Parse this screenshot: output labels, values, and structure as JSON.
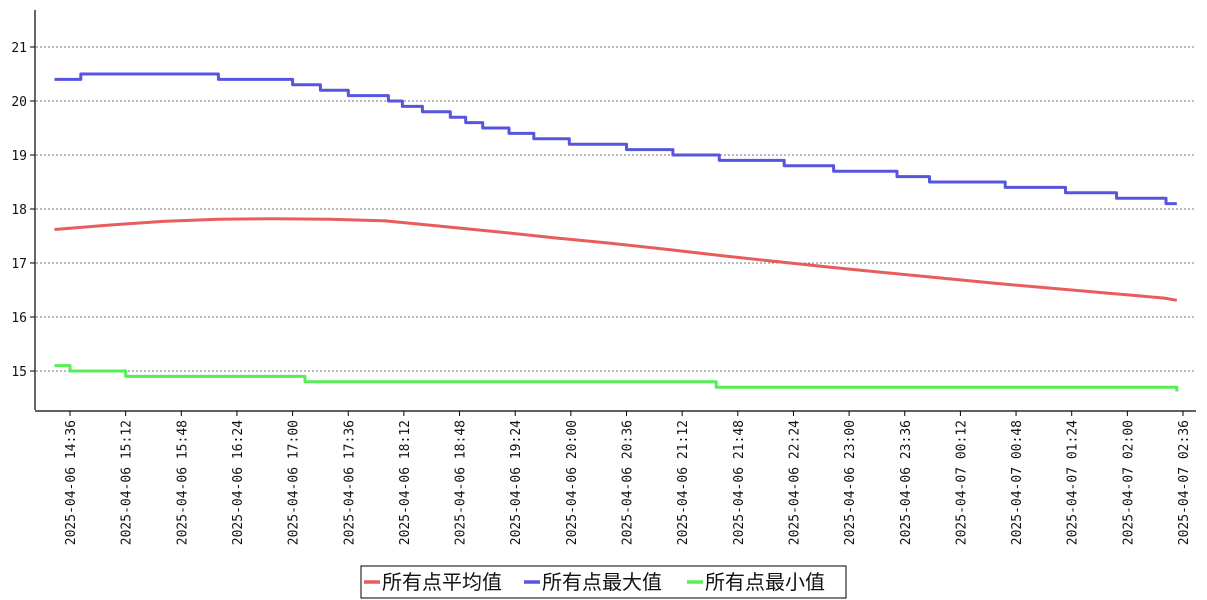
{
  "chart_data": {
    "type": "line",
    "title": "",
    "xlabel": "",
    "ylabel": "",
    "ylim": [
      14.3,
      21.7
    ],
    "yticks": [
      15,
      16,
      17,
      18,
      19,
      20,
      21
    ],
    "xticks": [
      "2025-04-06 14:36",
      "2025-04-06 15:12",
      "2025-04-06 15:48",
      "2025-04-06 16:24",
      "2025-04-06 17:00",
      "2025-04-06 17:36",
      "2025-04-06 18:12",
      "2025-04-06 18:48",
      "2025-04-06 19:24",
      "2025-04-06 20:00",
      "2025-04-06 20:36",
      "2025-04-06 21:12",
      "2025-04-06 21:48",
      "2025-04-06 22:24",
      "2025-04-06 23:00",
      "2025-04-06 23:36",
      "2025-04-07 00:12",
      "2025-04-07 00:48",
      "2025-04-07 01:24",
      "2025-04-07 02:00",
      "2025-04-07 02:36"
    ],
    "grid": "horizontal-dotted",
    "legend_position": "bottom-center",
    "series": [
      {
        "name": "所有点平均值",
        "color": "#e85c5c",
        "points": [
          [
            "2025-04-06 14:26",
            17.62
          ],
          [
            "2025-04-06 15:00",
            17.7
          ],
          [
            "2025-04-06 15:36",
            17.77
          ],
          [
            "2025-04-06 16:12",
            17.81
          ],
          [
            "2025-04-06 16:48",
            17.82
          ],
          [
            "2025-04-06 17:24",
            17.81
          ],
          [
            "2025-04-06 18:00",
            17.78
          ],
          [
            "2025-04-06 18:36",
            17.68
          ],
          [
            "2025-04-06 19:12",
            17.58
          ],
          [
            "2025-04-06 19:48",
            17.47
          ],
          [
            "2025-04-06 20:24",
            17.37
          ],
          [
            "2025-04-06 21:00",
            17.26
          ],
          [
            "2025-04-06 21:36",
            17.14
          ],
          [
            "2025-04-06 22:12",
            17.03
          ],
          [
            "2025-04-06 22:48",
            16.92
          ],
          [
            "2025-04-06 23:24",
            16.82
          ],
          [
            "2025-04-07 00:00",
            16.72
          ],
          [
            "2025-04-07 00:36",
            16.62
          ],
          [
            "2025-04-07 01:12",
            16.53
          ],
          [
            "2025-04-07 01:48",
            16.44
          ],
          [
            "2025-04-07 02:24",
            16.35
          ],
          [
            "2025-04-07 02:32",
            16.31
          ]
        ]
      },
      {
        "name": "所有点最大值",
        "color": "#5555dd",
        "points": [
          [
            "2025-04-06 14:26",
            20.4
          ],
          [
            "2025-04-06 14:43",
            20.4
          ],
          [
            "2025-04-06 14:43",
            20.5
          ],
          [
            "2025-04-06 16:12",
            20.5
          ],
          [
            "2025-04-06 16:12",
            20.4
          ],
          [
            "2025-04-06 17:00",
            20.4
          ],
          [
            "2025-04-06 17:00",
            20.3
          ],
          [
            "2025-04-06 17:18",
            20.3
          ],
          [
            "2025-04-06 17:18",
            20.2
          ],
          [
            "2025-04-06 17:36",
            20.2
          ],
          [
            "2025-04-06 17:36",
            20.1
          ],
          [
            "2025-04-06 18:02",
            20.1
          ],
          [
            "2025-04-06 18:02",
            20.0
          ],
          [
            "2025-04-06 18:11",
            20.0
          ],
          [
            "2025-04-06 18:11",
            19.9
          ],
          [
            "2025-04-06 18:24",
            19.9
          ],
          [
            "2025-04-06 18:24",
            19.8
          ],
          [
            "2025-04-06 18:42",
            19.8
          ],
          [
            "2025-04-06 18:42",
            19.7
          ],
          [
            "2025-04-06 18:52",
            19.7
          ],
          [
            "2025-04-06 18:52",
            19.6
          ],
          [
            "2025-04-06 19:03",
            19.6
          ],
          [
            "2025-04-06 19:03",
            19.5
          ],
          [
            "2025-04-06 19:20",
            19.5
          ],
          [
            "2025-04-06 19:20",
            19.4
          ],
          [
            "2025-04-06 19:36",
            19.4
          ],
          [
            "2025-04-06 19:36",
            19.3
          ],
          [
            "2025-04-06 19:59",
            19.3
          ],
          [
            "2025-04-06 19:59",
            19.2
          ],
          [
            "2025-04-06 20:36",
            19.2
          ],
          [
            "2025-04-06 20:36",
            19.1
          ],
          [
            "2025-04-06 21:06",
            19.1
          ],
          [
            "2025-04-06 21:06",
            19.0
          ],
          [
            "2025-04-06 21:36",
            19.0
          ],
          [
            "2025-04-06 21:36",
            18.9
          ],
          [
            "2025-04-06 22:18",
            18.9
          ],
          [
            "2025-04-06 22:18",
            18.8
          ],
          [
            "2025-04-06 22:50",
            18.8
          ],
          [
            "2025-04-06 22:50",
            18.7
          ],
          [
            "2025-04-06 23:31",
            18.7
          ],
          [
            "2025-04-06 23:31",
            18.6
          ],
          [
            "2025-04-06 23:52",
            18.6
          ],
          [
            "2025-04-06 23:52",
            18.5
          ],
          [
            "2025-04-07 00:41",
            18.5
          ],
          [
            "2025-04-07 00:41",
            18.4
          ],
          [
            "2025-04-07 01:20",
            18.4
          ],
          [
            "2025-04-07 01:20",
            18.3
          ],
          [
            "2025-04-07 01:53",
            18.3
          ],
          [
            "2025-04-07 01:53",
            18.2
          ],
          [
            "2025-04-07 02:25",
            18.2
          ],
          [
            "2025-04-07 02:25",
            18.1
          ],
          [
            "2025-04-07 02:32",
            18.1
          ]
        ]
      },
      {
        "name": "所有点最小值",
        "color": "#55ee55",
        "points": [
          [
            "2025-04-06 14:26",
            15.1
          ],
          [
            "2025-04-06 14:36",
            15.1
          ],
          [
            "2025-04-06 14:36",
            15.0
          ],
          [
            "2025-04-06 15:12",
            15.0
          ],
          [
            "2025-04-06 15:12",
            14.9
          ],
          [
            "2025-04-06 17:08",
            14.9
          ],
          [
            "2025-04-06 17:08",
            14.8
          ],
          [
            "2025-04-06 21:34",
            14.8
          ],
          [
            "2025-04-06 21:34",
            14.7
          ],
          [
            "2025-04-07 02:32",
            14.7
          ],
          [
            "2025-04-07 02:32",
            14.62
          ]
        ]
      }
    ]
  }
}
